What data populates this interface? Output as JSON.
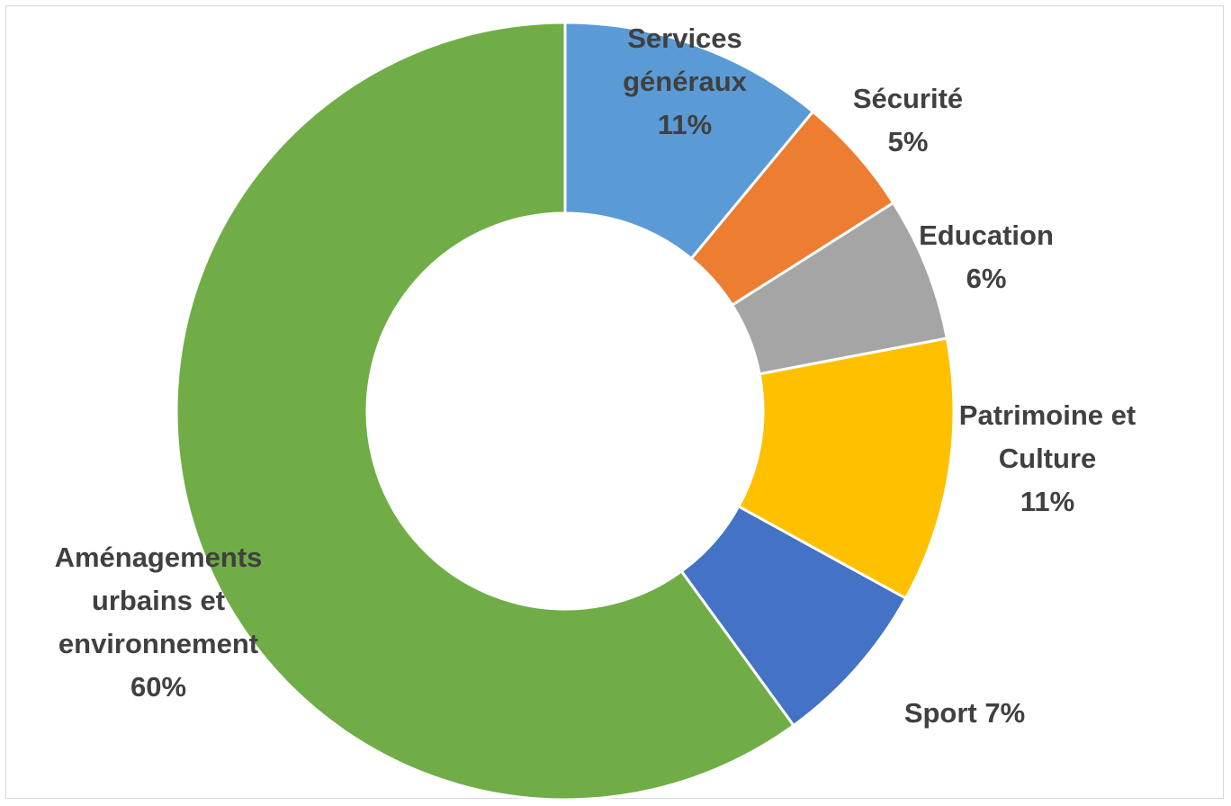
{
  "chart_data": {
    "type": "donut",
    "categories": [
      "Services généraux",
      "Sécurité",
      "Education",
      "Patrimoine et Culture",
      "Sport",
      "Aménagements urbains et environnement"
    ],
    "values": [
      11,
      5,
      6,
      11,
      7,
      60
    ],
    "value_labels": [
      "11%",
      "5%",
      "6%",
      "11%",
      "7%",
      "60%"
    ],
    "colors": [
      "#5b9bd5",
      "#ed7d31",
      "#a5a5a5",
      "#ffc000",
      "#4472c4",
      "#70ad47"
    ]
  }
}
